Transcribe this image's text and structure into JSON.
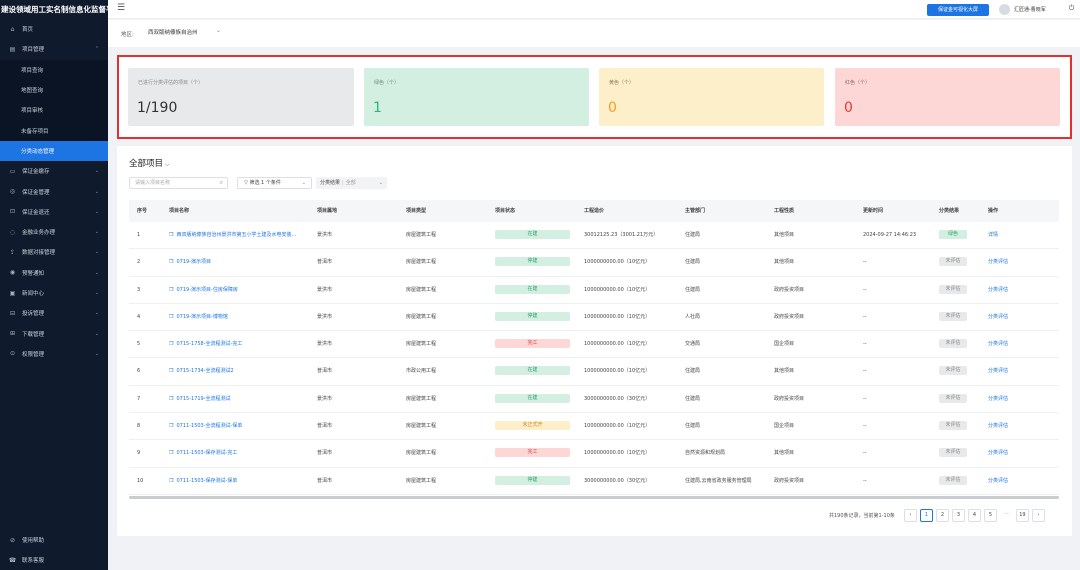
{
  "app": {
    "title": "建设领域用工实名制信息化监督平台"
  },
  "sidebar": {
    "items": [
      {
        "label": "首页",
        "icon": "home-icon",
        "glyph": "⌂"
      },
      {
        "label": "项目管理",
        "icon": "project-icon",
        "glyph": "▤",
        "expanded": true,
        "children": [
          {
            "label": "项目查询"
          },
          {
            "label": "地图查询"
          },
          {
            "label": "项目审核"
          },
          {
            "label": "未备存项目"
          },
          {
            "label": "分类动态管理",
            "active": true
          }
        ]
      },
      {
        "label": "保证金缴存",
        "icon": "deposit-icon",
        "glyph": "▭"
      },
      {
        "label": "保证金管理",
        "icon": "deposit-manage-icon",
        "glyph": "◎"
      },
      {
        "label": "保证金退还",
        "icon": "refund-icon",
        "glyph": "⊡"
      },
      {
        "label": "金融业务办理",
        "icon": "finance-icon",
        "glyph": "◌"
      },
      {
        "label": "数据对接管理",
        "icon": "data-icon",
        "glyph": "⇪"
      },
      {
        "label": "预警通知",
        "icon": "alert-icon",
        "glyph": "◉"
      },
      {
        "label": "新闻中心",
        "icon": "news-icon",
        "glyph": "▣"
      },
      {
        "label": "投诉管理",
        "icon": "complaint-icon",
        "glyph": "⊟"
      },
      {
        "label": "下载管理",
        "icon": "download-icon",
        "glyph": "⊞"
      },
      {
        "label": "权限管理",
        "icon": "permission-icon",
        "glyph": "⊙"
      }
    ],
    "bottom": [
      {
        "label": "使用帮助",
        "icon": "help-icon",
        "glyph": "⊘"
      },
      {
        "label": "联系客服",
        "icon": "service-icon",
        "glyph": "☎"
      }
    ]
  },
  "topbar": {
    "cta_label": "保证金可视化大屏",
    "user_name": "汇匠通-曹晓军"
  },
  "region": {
    "label": "地区:",
    "value": "西双版纳傣族自治州"
  },
  "stats": [
    {
      "title": "已进行分类评估的项目（个）",
      "value": "1/190",
      "bg": "#e8e9eb",
      "fg": "#333333",
      "tfg": "#888888"
    },
    {
      "title": "绿色（个）",
      "value": "1",
      "bg": "#d2efe1",
      "fg": "#2bb673",
      "tfg": "#6c8a7a"
    },
    {
      "title": "黄色（个）",
      "value": "0",
      "bg": "#fdefc9",
      "fg": "#f0a020",
      "tfg": "#8f7b4a"
    },
    {
      "title": "红色（个）",
      "value": "0",
      "bg": "#fdd6d6",
      "fg": "#e53935",
      "tfg": "#8f6464"
    }
  ],
  "table_card": {
    "title": "全部项目",
    "search_placeholder": "请输入项目名称",
    "filter_label": "筛选 1 个条件",
    "class_filter_label": "分类结果",
    "class_filter_value": "全部",
    "columns": [
      "序号",
      "项目名称",
      "项目属地",
      "项目类型",
      "项目状态",
      "工程造价",
      "主管部门",
      "工程性质",
      "更新时间",
      "分类结果",
      "操作"
    ],
    "rows": [
      {
        "no": "1",
        "name": "西双版纳傣族自治州景洪市第五小学土建及水电安装...",
        "place": "景洪市",
        "type": "房屋建筑工程",
        "status": "在建",
        "cost": "30012125.23（3001.21万元）",
        "dept": "住建局",
        "nature": "其他项目",
        "updated": "2024-09-27 14:46:23",
        "result": "绿色",
        "action": "详情"
      },
      {
        "no": "2",
        "name": "0719-演示项目",
        "place": "普洱市",
        "type": "房屋建筑工程",
        "status": "停建",
        "cost": "1000000000.00（10亿元）",
        "dept": "住建局",
        "nature": "其他项目",
        "updated": "--",
        "result": "未评估",
        "action": "分类评估"
      },
      {
        "no": "3",
        "name": "0719-演示项目-住房保障房",
        "place": "景洪市",
        "type": "房屋建筑工程",
        "status": "在建",
        "cost": "1000000000.00（10亿元）",
        "dept": "住建局",
        "nature": "政府投资项目",
        "updated": "--",
        "result": "未评估",
        "action": "分类评估"
      },
      {
        "no": "4",
        "name": "0719-演示项目-博物馆",
        "place": "景洪市",
        "type": "房屋建筑工程",
        "status": "停建",
        "cost": "1000000000.00（10亿元）",
        "dept": "人社局",
        "nature": "政府投资项目",
        "updated": "--",
        "result": "未评估",
        "action": "分类评估"
      },
      {
        "no": "5",
        "name": "0715-1758-全流程测试-完工",
        "place": "景洪市",
        "type": "房屋建筑工程",
        "status": "完工",
        "cost": "1000000000.00（10亿元）",
        "dept": "交通局",
        "nature": "国企项目",
        "updated": "--",
        "result": "未评估",
        "action": "分类评估"
      },
      {
        "no": "6",
        "name": "0715-1734-全流程测试2",
        "place": "普洱市",
        "type": "市政公用工程",
        "status": "在建",
        "cost": "1000000000.00（10亿元）",
        "dept": "住建局",
        "nature": "其他项目",
        "updated": "--",
        "result": "未评估",
        "action": "分类评估"
      },
      {
        "no": "7",
        "name": "0715-1719-全流程测试",
        "place": "景洪市",
        "type": "房屋建筑工程",
        "status": "在建",
        "cost": "3000000000.00（30亿元）",
        "dept": "住建局",
        "nature": "政府投资项目",
        "updated": "--",
        "result": "未评估",
        "action": "分类评估"
      },
      {
        "no": "8",
        "name": "0711-1503-全流程测试-保单",
        "place": "普洱市",
        "type": "房屋建筑工程",
        "status": "未正式开",
        "cost": "1000000000.00（10亿元）",
        "dept": "住建局",
        "nature": "国企项目",
        "updated": "--",
        "result": "未评估",
        "action": "分类评估"
      },
      {
        "no": "9",
        "name": "0711-1503-保存测试-完工",
        "place": "普洱市",
        "type": "房屋建筑工程",
        "status": "完工",
        "cost": "1000000000.00（10亿元）",
        "dept": "自然资源和规划局",
        "nature": "其他项目",
        "updated": "--",
        "result": "未评估",
        "action": "分类评估"
      },
      {
        "no": "10",
        "name": "0711-1503-保存测试-保单",
        "place": "普洱市",
        "type": "房屋建筑工程",
        "status": "停建",
        "cost": "3000000000.00（30亿元）",
        "dept": "住建局,云南省政务服务管理局",
        "nature": "政府投资项目",
        "updated": "--",
        "result": "未评估",
        "action": "分类评估"
      }
    ],
    "status_colors": {
      "在建": {
        "bg": "#d2efe1",
        "fg": "#2e9e6a"
      },
      "停建": {
        "bg": "#d2efe1",
        "fg": "#2e9e6a"
      },
      "完工": {
        "bg": "#fdd6d6",
        "fg": "#d64545"
      },
      "未正式开": {
        "bg": "#fdefc9",
        "fg": "#d08a1a"
      }
    },
    "result_colors": {
      "绿色": {
        "bg": "#d2efe1",
        "fg": "#2e9e6a"
      },
      "未评估": {
        "bg": "#e8e9eb",
        "fg": "#888888"
      }
    },
    "pagination": {
      "total_text": "共190条记录，当前第1-10条",
      "pages": [
        "1",
        "2",
        "3",
        "4",
        "5",
        "···",
        "19"
      ],
      "current": "1",
      "prev": "‹",
      "next": "›"
    }
  }
}
